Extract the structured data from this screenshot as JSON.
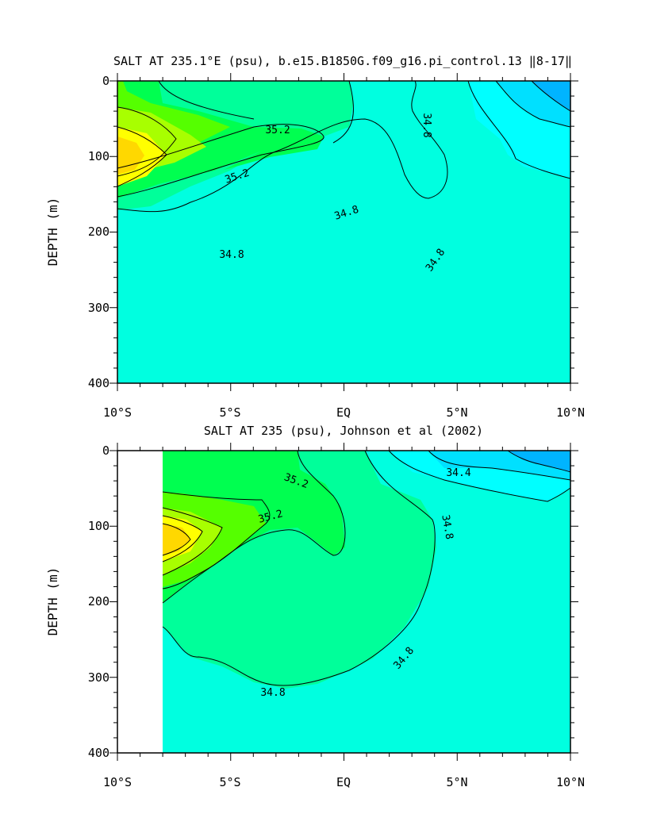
{
  "chart_data": [
    {
      "type": "contour",
      "title": "SALT AT 235.1°E (psu), b.e15.B1850G.f09_g16.pi_control.13 ‖8-17‖",
      "ylabel": "DEPTH (m)",
      "xlim": [
        -10,
        10
      ],
      "ylim": [
        400,
        0
      ],
      "x_tick_labels": [
        "10°S",
        "5°S",
        "EQ",
        "5°N",
        "10°N"
      ],
      "y_tick_labels": [
        "0",
        "100",
        "200",
        "300",
        "400"
      ],
      "contour_labels": [
        "35.2",
        "35.2",
        "34.8",
        "34.8",
        "34.8",
        "34.8"
      ],
      "salinity_range_psu": [
        34.4,
        35.6
      ],
      "fill_colors": [
        "#00b4ff",
        "#00e0ff",
        "#00ffff",
        "#00ffe0",
        "#00ff9a",
        "#00ff50",
        "#55ff00",
        "#a8ff00",
        "#ffff00",
        "#ffd800"
      ]
    },
    {
      "type": "contour",
      "title": "SALT AT 235 (psu), Johnson et al (2002)",
      "ylabel": "DEPTH (m)",
      "xlim": [
        -10,
        10
      ],
      "ylim": [
        400,
        0
      ],
      "x_tick_labels": [
        "10°S",
        "5°S",
        "EQ",
        "5°N",
        "10°N"
      ],
      "y_tick_labels": [
        "0",
        "100",
        "200",
        "300",
        "400"
      ],
      "contour_labels": [
        "35.2",
        "35.2",
        "34.4",
        "34.8",
        "34.8",
        "34.8"
      ],
      "data_start_lat": -8,
      "salinity_range_psu": [
        34.4,
        35.6
      ]
    }
  ]
}
